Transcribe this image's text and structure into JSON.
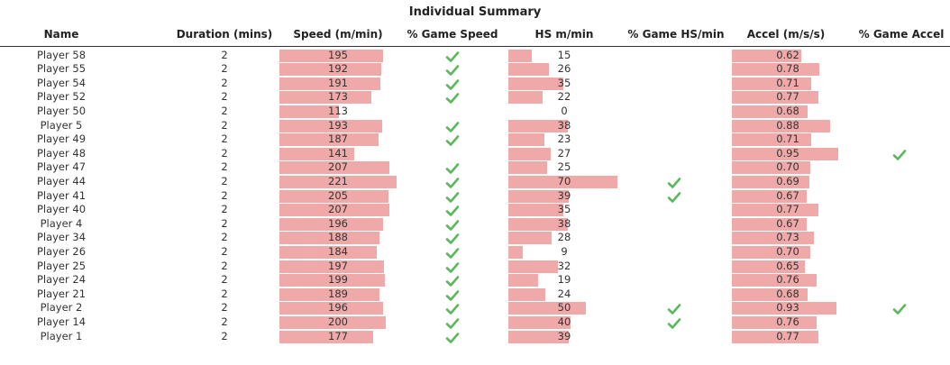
{
  "chart_data": {
    "type": "table",
    "title": "Individual Summary",
    "columns": [
      "Name",
      "Duration (mins)",
      "Speed (m/min)",
      "% Game Speed",
      "HS m/min",
      "% Game HS/min",
      "Accel (m/s/s)",
      "% Game Accel"
    ],
    "rows": [
      {
        "name": "Player 58",
        "duration": "2",
        "speed": 195,
        "game_speed": true,
        "hs": 15,
        "game_hs": false,
        "accel": 0.62,
        "game_accel": false
      },
      {
        "name": "Player 55",
        "duration": "2",
        "speed": 192,
        "game_speed": true,
        "hs": 26,
        "game_hs": false,
        "accel": 0.78,
        "game_accel": false
      },
      {
        "name": "Player 54",
        "duration": "2",
        "speed": 191,
        "game_speed": true,
        "hs": 35,
        "game_hs": false,
        "accel": 0.71,
        "game_accel": false
      },
      {
        "name": "Player 52",
        "duration": "2",
        "speed": 173,
        "game_speed": true,
        "hs": 22,
        "game_hs": false,
        "accel": 0.77,
        "game_accel": false
      },
      {
        "name": "Player 50",
        "duration": "2",
        "speed": 113,
        "game_speed": false,
        "hs": 0,
        "game_hs": false,
        "accel": 0.68,
        "game_accel": false
      },
      {
        "name": "Player 5",
        "duration": "2",
        "speed": 193,
        "game_speed": true,
        "hs": 38,
        "game_hs": false,
        "accel": 0.88,
        "game_accel": false
      },
      {
        "name": "Player 49",
        "duration": "2",
        "speed": 187,
        "game_speed": true,
        "hs": 23,
        "game_hs": false,
        "accel": 0.71,
        "game_accel": false
      },
      {
        "name": "Player 48",
        "duration": "2",
        "speed": 141,
        "game_speed": false,
        "hs": 27,
        "game_hs": false,
        "accel": 0.95,
        "game_accel": true
      },
      {
        "name": "Player 47",
        "duration": "2",
        "speed": 207,
        "game_speed": true,
        "hs": 25,
        "game_hs": false,
        "accel": 0.7,
        "game_accel": false
      },
      {
        "name": "Player 44",
        "duration": "2",
        "speed": 221,
        "game_speed": true,
        "hs": 70,
        "game_hs": true,
        "accel": 0.69,
        "game_accel": false
      },
      {
        "name": "Player 41",
        "duration": "2",
        "speed": 205,
        "game_speed": true,
        "hs": 39,
        "game_hs": true,
        "accel": 0.67,
        "game_accel": false
      },
      {
        "name": "Player 40",
        "duration": "2",
        "speed": 207,
        "game_speed": true,
        "hs": 35,
        "game_hs": false,
        "accel": 0.77,
        "game_accel": false
      },
      {
        "name": "Player 4",
        "duration": "2",
        "speed": 196,
        "game_speed": true,
        "hs": 38,
        "game_hs": false,
        "accel": 0.67,
        "game_accel": false
      },
      {
        "name": "Player 34",
        "duration": "2",
        "speed": 188,
        "game_speed": true,
        "hs": 28,
        "game_hs": false,
        "accel": 0.73,
        "game_accel": false
      },
      {
        "name": "Player 26",
        "duration": "2",
        "speed": 184,
        "game_speed": true,
        "hs": 9,
        "game_hs": false,
        "accel": 0.7,
        "game_accel": false
      },
      {
        "name": "Player 25",
        "duration": "2",
        "speed": 197,
        "game_speed": true,
        "hs": 32,
        "game_hs": false,
        "accel": 0.65,
        "game_accel": false
      },
      {
        "name": "Player 24",
        "duration": "2",
        "speed": 199,
        "game_speed": true,
        "hs": 19,
        "game_hs": false,
        "accel": 0.76,
        "game_accel": false
      },
      {
        "name": "Player 21",
        "duration": "2",
        "speed": 189,
        "game_speed": true,
        "hs": 24,
        "game_hs": false,
        "accel": 0.68,
        "game_accel": false
      },
      {
        "name": "Player 2",
        "duration": "2",
        "speed": 196,
        "game_speed": true,
        "hs": 50,
        "game_hs": true,
        "accel": 0.93,
        "game_accel": true
      },
      {
        "name": "Player 14",
        "duration": "2",
        "speed": 200,
        "game_speed": true,
        "hs": 40,
        "game_hs": true,
        "accel": 0.76,
        "game_accel": false
      },
      {
        "name": "Player 1",
        "duration": "2",
        "speed": 177,
        "game_speed": true,
        "hs": 39,
        "game_hs": false,
        "accel": 0.77,
        "game_accel": false
      }
    ]
  },
  "colors": {
    "bar": "#f0a9a9",
    "check": "#5cb85c",
    "rule": "#333333"
  },
  "icons": {
    "check": "check-icon"
  }
}
